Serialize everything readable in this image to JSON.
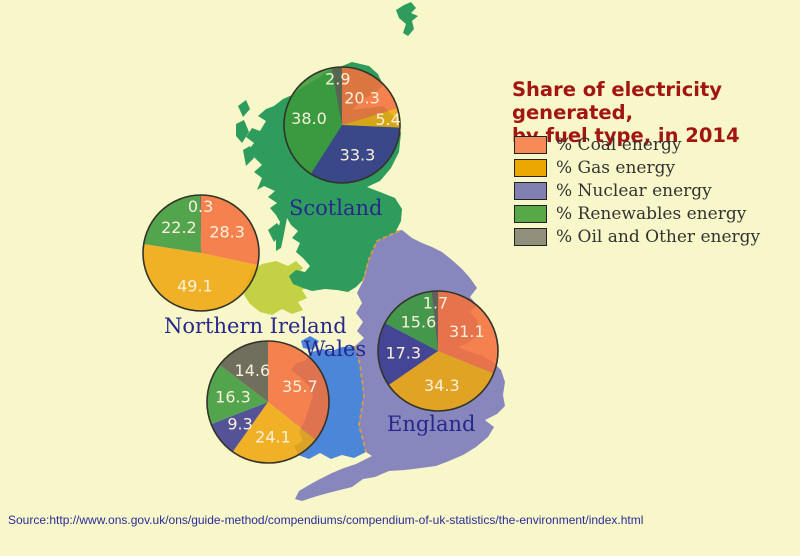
{
  "title": {
    "line1": "Share of electricity generated,",
    "line2": "by fuel type, in 2014"
  },
  "legend": {
    "items": [
      {
        "label": "% Coal energy",
        "swatch_color": "#F68B57",
        "pie_color": "#F4713C"
      },
      {
        "label": "% Gas energy",
        "swatch_color": "#ECA800",
        "pie_color": "#EEA70F"
      },
      {
        "label": "% Nuclear energy",
        "swatch_color": "#8181B1",
        "pie_color": "#3C3C90"
      },
      {
        "label": "% Renewables energy",
        "swatch_color": "#57A847",
        "pie_color": "#3B9A3B"
      },
      {
        "label": "% Oil and Other energy",
        "swatch_color": "#908F7B",
        "pie_color": "#5C5C4E"
      }
    ]
  },
  "map": {
    "regions": [
      {
        "name": "Scotland",
        "label": "Scotland",
        "color": "#2E9C5C"
      },
      {
        "name": "England",
        "label": "England",
        "color": "#8787BE"
      },
      {
        "name": "Wales",
        "label": "Wales",
        "color": "#4C86D9"
      },
      {
        "name": "Northern Ireland",
        "label": "Northern Ireland",
        "color": "#C3D245"
      }
    ],
    "border_color": "#E09A3A",
    "label_color": "#28288C"
  },
  "chart_data": [
    {
      "type": "pie",
      "region": "Scotland",
      "categories": [
        "% Coal energy",
        "% Gas energy",
        "% Nuclear energy",
        "% Renewables energy",
        "% Oil and Other energy"
      ],
      "values": [
        20.3,
        5.4,
        33.3,
        38.0,
        2.9
      ]
    },
    {
      "type": "pie",
      "region": "Northern Ireland",
      "categories": [
        "% Coal energy",
        "% Gas energy",
        "% Nuclear energy",
        "% Renewables energy",
        "% Oil and Other energy"
      ],
      "values": [
        28.3,
        49.1,
        0,
        22.2,
        0.3
      ]
    },
    {
      "type": "pie",
      "region": "Wales",
      "categories": [
        "% Coal energy",
        "% Gas energy",
        "% Nuclear energy",
        "% Renewables energy",
        "% Oil and Other energy"
      ],
      "values": [
        35.7,
        24.1,
        9.3,
        16.3,
        14.6
      ]
    },
    {
      "type": "pie",
      "region": "England",
      "categories": [
        "% Coal energy",
        "% Gas energy",
        "% Nuclear energy",
        "% Renewables energy",
        "% Oil and Other energy"
      ],
      "values": [
        31.1,
        34.3,
        17.3,
        15.6,
        1.7
      ]
    }
  ],
  "source": "Source:http://www.ons.gov.uk/ons/guide-method/compendiums/compendium-of-uk-statistics/the-environment/index.html"
}
